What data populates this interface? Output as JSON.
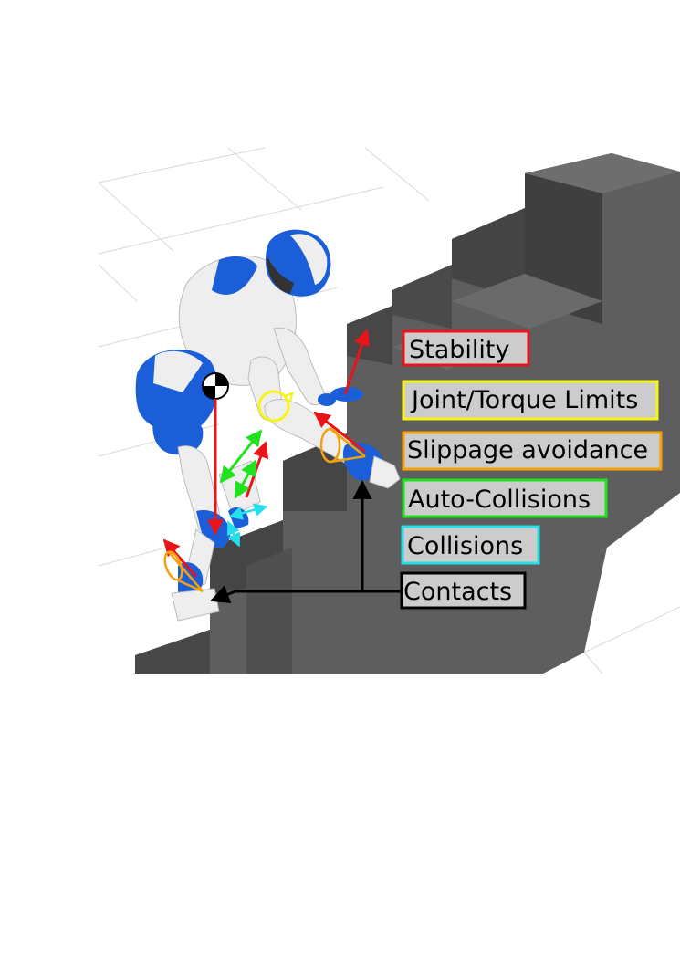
{
  "labels": {
    "stability": "Stability",
    "joint_torque_limits": "Joint/Torque Limits",
    "slippage_avoidance": "Slippage avoidance",
    "auto_collisions": "Auto-Collisions",
    "collisions": "Collisions",
    "contacts": "Contacts"
  },
  "colors": {
    "stability": "#e8141a",
    "joint_torque_limits": "#f5f516",
    "slippage_avoidance": "#f5a10c",
    "auto_collisions": "#21e21f",
    "collisions": "#24e0ea",
    "contacts": "#000000",
    "label_fill": "#cccccc",
    "robot_blue": "#1a5ed8",
    "robot_white": "#eeeeee",
    "stairs_dark": "#4a4a4a",
    "stairs_mid": "#5e5e5e"
  }
}
